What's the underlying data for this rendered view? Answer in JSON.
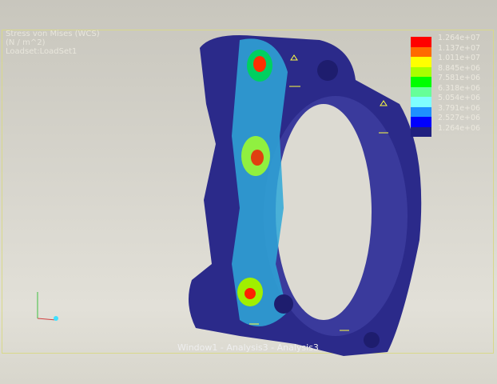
{
  "result_title": {
    "quantity": "Stress von Mises (WCS)",
    "units": "(N / m^2)",
    "loadset": "Loadset:LoadSet1"
  },
  "legend": {
    "colors": [
      "#ff0000",
      "#ff6a00",
      "#ffff00",
      "#a8ff00",
      "#00ff00",
      "#66ff99",
      "#7fffff",
      "#1e90ff",
      "#0000ff",
      "#20207f"
    ],
    "labels": [
      "1.264e+07",
      "1.137e+07",
      "1.011e+07",
      "8.845e+06",
      "7.581e+06",
      "6.318e+06",
      "5.054e+06",
      "3.791e+06",
      "2.527e+06",
      "1.264e+06"
    ]
  },
  "footer": "Window1 - Analysis3 - Analysis3",
  "model_color": "#2b2a8a"
}
